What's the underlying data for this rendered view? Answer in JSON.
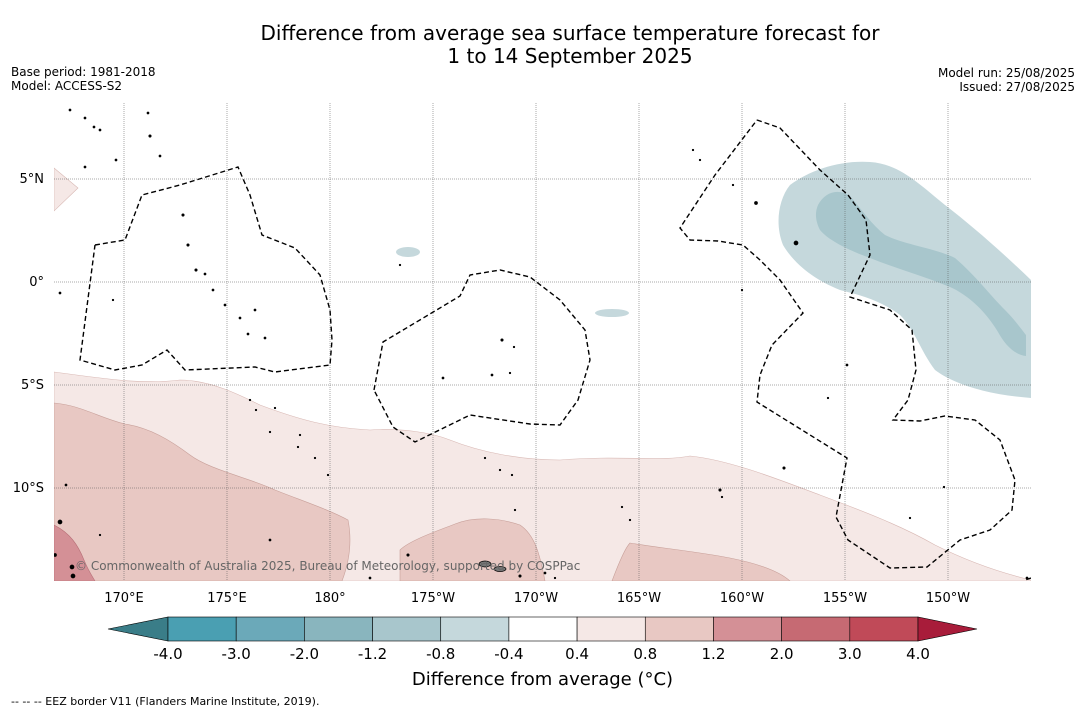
{
  "title": {
    "line1": "Difference from average sea surface temperature forecast for",
    "line2": "1 to 14 September 2025"
  },
  "meta": {
    "base_period": "Base period: 1981-2018",
    "model": "Model: ACCESS-S2",
    "model_run": "Model run: 25/08/2025",
    "issued": "Issued: 27/08/2025"
  },
  "map": {
    "lat_labels": [
      "5°N",
      "0°",
      "5°S",
      "10°S"
    ],
    "lon_labels": [
      "170°E",
      "175°E",
      "180°",
      "175°W",
      "170°W",
      "165°W",
      "160°W",
      "155°W",
      "150°W"
    ],
    "copyright": "© Commonwealth of Australia 2025, Bureau of Meteorology, supported by COSPPac"
  },
  "colorbar": {
    "ticks": [
      "-4.0",
      "-3.0",
      "-2.0",
      "-1.2",
      "-0.8",
      "-0.4",
      "0.4",
      "0.8",
      "1.2",
      "2.0",
      "3.0",
      "4.0"
    ],
    "colors": {
      "below": "#3a7d88",
      "bins": [
        "#4a9fb2",
        "#6ba9b9",
        "#89b5be",
        "#a8c6cc",
        "#c5d8dc",
        "#ffffff",
        "#f5e8e6",
        "#e8c8c3",
        "#d49096",
        "#c66a73",
        "#c04a58"
      ],
      "above": "#a81c3a"
    },
    "title": "Difference from average (°C)"
  },
  "legend_note": "-- -- -- EEZ border V11 (Flanders Marine Institute, 2019)."
}
